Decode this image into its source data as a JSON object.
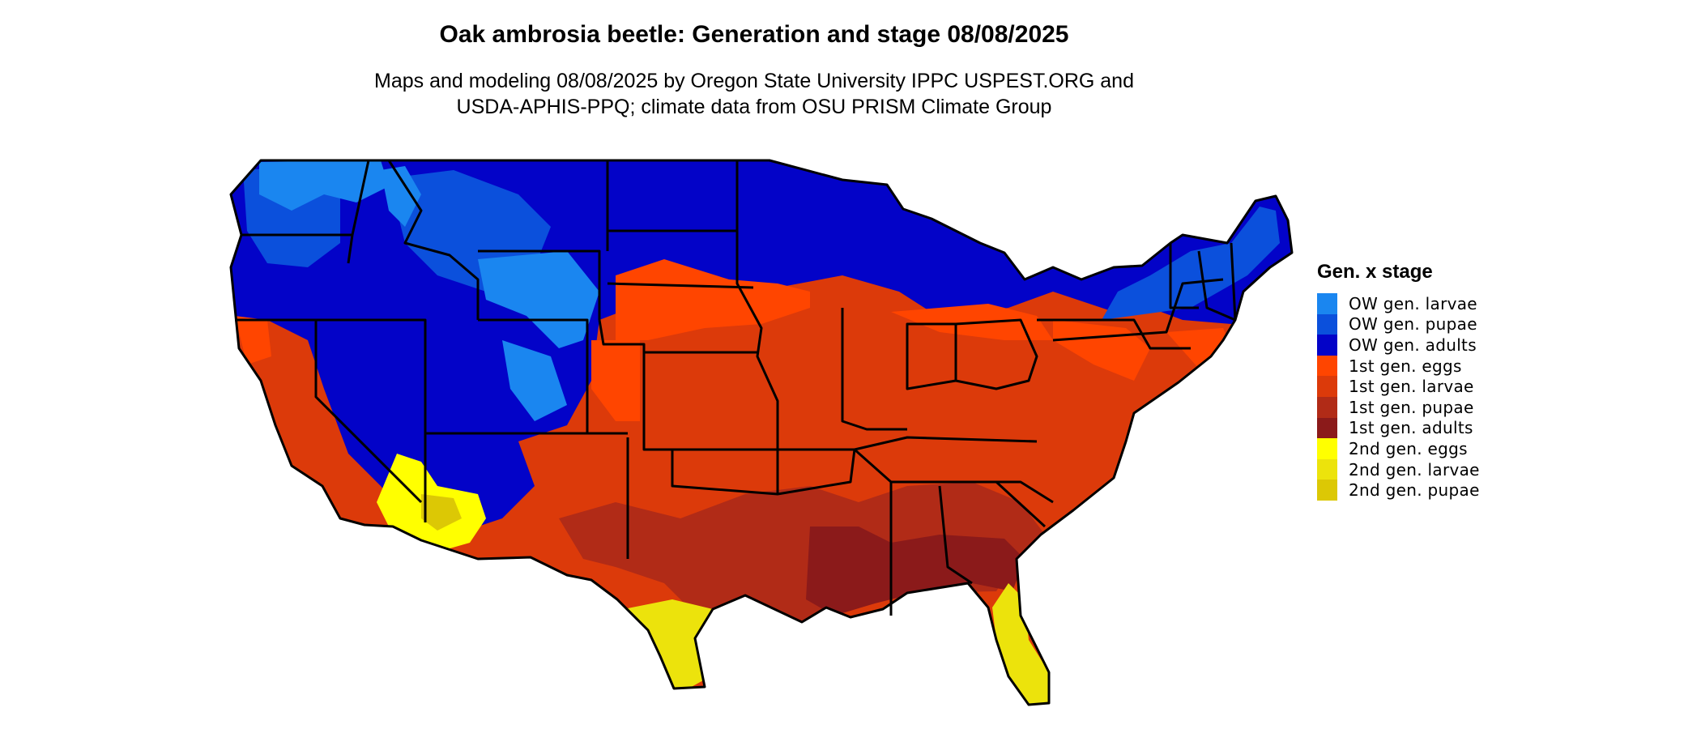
{
  "title": "Oak ambrosia beetle: Generation and stage 08/08/2025",
  "subtitle": {
    "line1": "Maps and modeling 08/08/2025 by Oregon State University IPPC USPEST.ORG and",
    "line2": "USDA-APHIS-PPQ; climate data from OSU PRISM Climate Group"
  },
  "legend": {
    "title": "Gen. x stage",
    "items": [
      {
        "label": "OW gen. larvae",
        "color": "#1a86f0"
      },
      {
        "label": "OW gen. pupae",
        "color": "#0b50dc"
      },
      {
        "label": "OW gen. adults",
        "color": "#0303c8"
      },
      {
        "label": "1st gen. eggs",
        "color": "#ff4500"
      },
      {
        "label": "1st gen. larvae",
        "color": "#dc3a0a"
      },
      {
        "label": "1st gen. pupae",
        "color": "#b12b17"
      },
      {
        "label": "1st gen. adults",
        "color": "#8b1a1a"
      },
      {
        "label": "2nd gen. eggs",
        "color": "#ffff00"
      },
      {
        "label": "2nd gen. larvae",
        "color": "#ece30c"
      },
      {
        "label": "2nd gen. pupae",
        "color": "#dcc805"
      }
    ]
  },
  "map": {
    "stroke_color": "#000000",
    "fills": {
      "ow_larvae": "#1a86f0",
      "ow_pupae": "#0b50dc",
      "ow_adults": "#0303c8",
      "g1_eggs": "#ff4500",
      "g1_larvae": "#dc3a0a",
      "g1_pupae": "#b12b17",
      "g1_adults": "#8b1a1a",
      "g2_eggs": "#ffff00",
      "g2_larvae": "#ece30c",
      "g2_pupae": "#dcc805"
    }
  }
}
